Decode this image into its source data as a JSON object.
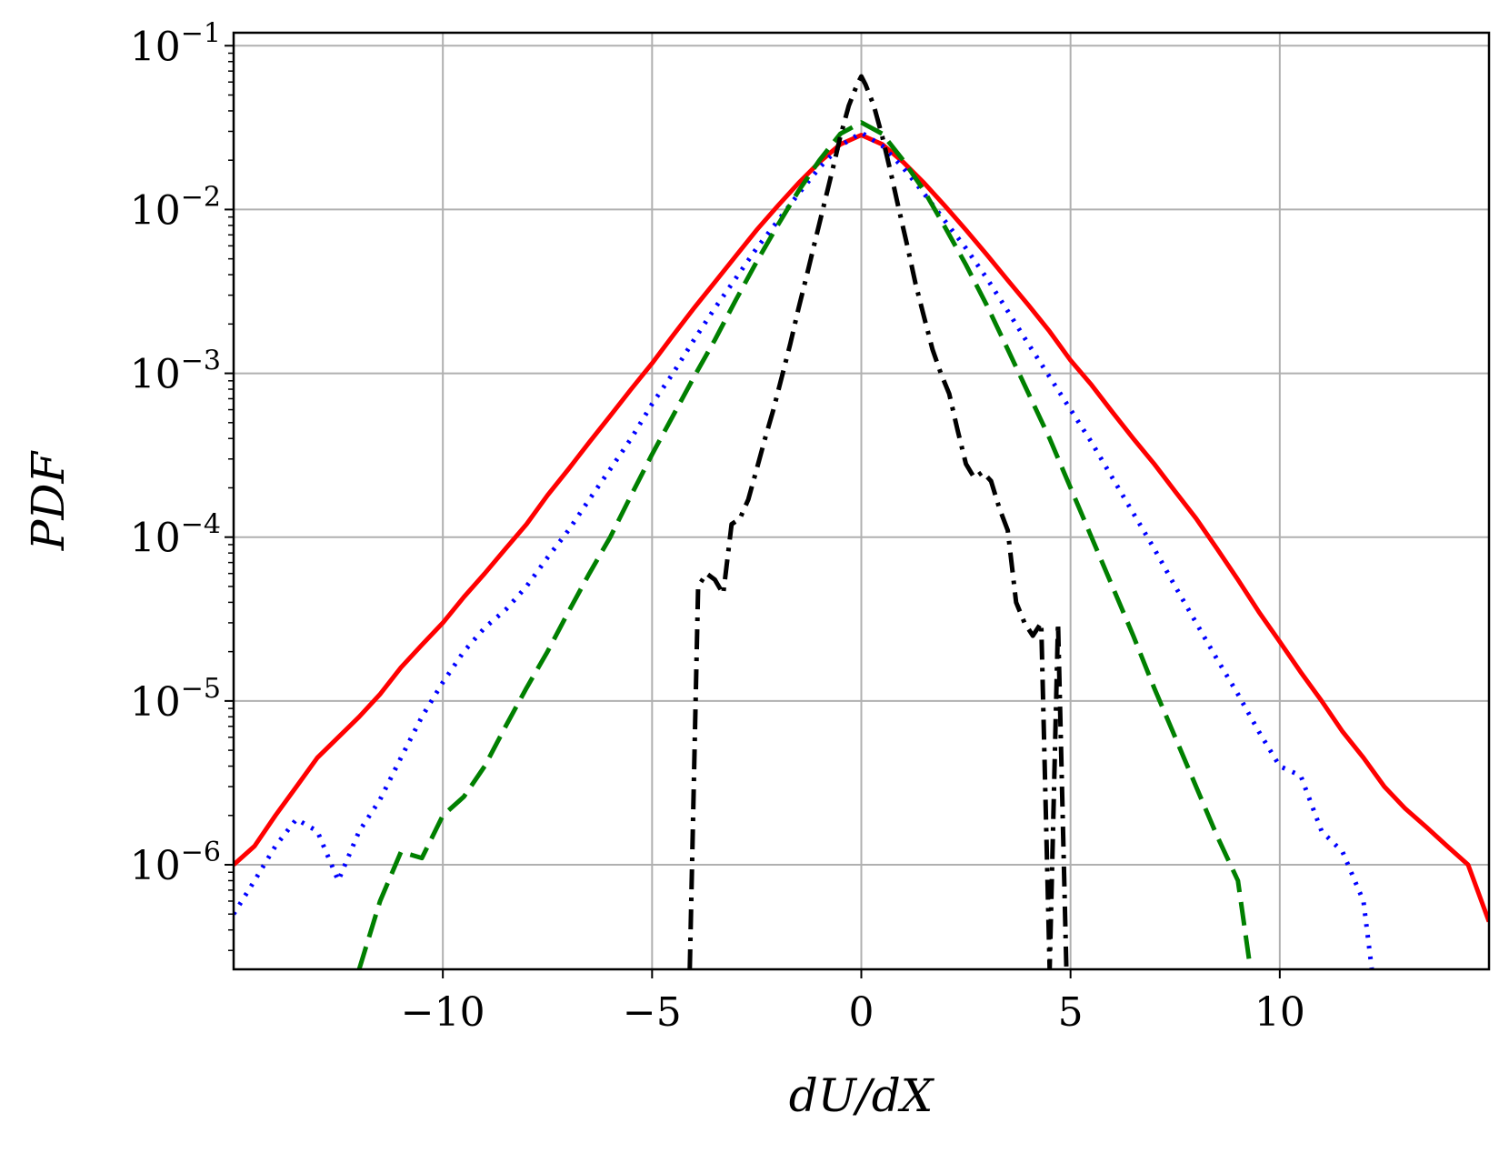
{
  "chart_data": {
    "type": "line",
    "title": "",
    "xlabel": "dU/dX",
    "ylabel": "PDF",
    "xlim": [
      -15,
      15
    ],
    "ylim": [
      2.3e-07,
      0.12
    ],
    "yscale": "log",
    "grid": true,
    "legend": "none",
    "x_ticks": [
      -10,
      -5,
      0,
      5,
      10
    ],
    "x_tick_labels": [
      "−10",
      "−5",
      "0",
      "5",
      "10"
    ],
    "y_ticks": [
      1e-06,
      1e-05,
      0.0001,
      0.001,
      0.01,
      0.1
    ],
    "y_tick_labels": [
      {
        "base": "10",
        "exp": "−6"
      },
      {
        "base": "10",
        "exp": "−5"
      },
      {
        "base": "10",
        "exp": "−4"
      },
      {
        "base": "10",
        "exp": "−3"
      },
      {
        "base": "10",
        "exp": "−2"
      },
      {
        "base": "10",
        "exp": "−1"
      }
    ],
    "series": [
      {
        "color": "#ff0000",
        "style": "solid",
        "x": [
          -15,
          -14.5,
          -14,
          -13.5,
          -13,
          -12.5,
          -12,
          -11.5,
          -11,
          -10.5,
          -10,
          -9.5,
          -9,
          -8.5,
          -8,
          -7.5,
          -7,
          -6.5,
          -6,
          -5.5,
          -5,
          -4.5,
          -4,
          -3.5,
          -3,
          -2.5,
          -2,
          -1.5,
          -1,
          -0.5,
          0,
          0.5,
          1,
          1.5,
          2,
          2.5,
          3,
          3.5,
          4,
          4.5,
          5,
          5.5,
          6,
          6.5,
          7,
          7.5,
          8,
          8.5,
          9,
          9.5,
          10,
          10.5,
          11,
          11.5,
          12,
          12.5,
          13,
          13.5,
          14,
          14.5,
          15
        ],
        "y": [
          1e-06,
          1.3e-06,
          2e-06,
          3e-06,
          4.5e-06,
          6e-06,
          8e-06,
          1.1e-05,
          1.6e-05,
          2.2e-05,
          3e-05,
          4.3e-05,
          6e-05,
          8.5e-05,
          0.00012,
          0.00018,
          0.00026,
          0.00038,
          0.00055,
          0.0008,
          0.00115,
          0.0017,
          0.0025,
          0.0036,
          0.0052,
          0.0075,
          0.0105,
          0.0145,
          0.0195,
          0.025,
          0.0285,
          0.025,
          0.0195,
          0.0145,
          0.0105,
          0.0075,
          0.0053,
          0.0037,
          0.0026,
          0.0018,
          0.0012,
          0.00085,
          0.00058,
          0.0004,
          0.00028,
          0.00019,
          0.00013,
          8.5e-05,
          5.5e-05,
          3.5e-05,
          2.3e-05,
          1.5e-05,
          1e-05,
          6.5e-06,
          4.5e-06,
          3e-06,
          2.2e-06,
          1.7e-06,
          1.3e-06,
          1e-06,
          4.5e-07
        ]
      },
      {
        "color": "#0000ff",
        "style": "dotted",
        "x": [
          -15,
          -14.5,
          -14,
          -13.5,
          -13,
          -12.5,
          -12,
          -11.5,
          -11,
          -10.5,
          -10,
          -9.5,
          -9,
          -8.5,
          -8,
          -7.5,
          -7,
          -6.5,
          -6,
          -5.5,
          -5,
          -4.5,
          -4,
          -3.5,
          -3,
          -2.5,
          -2,
          -1.5,
          -1,
          -0.5,
          0,
          0.5,
          1,
          1.5,
          2,
          2.5,
          3,
          3.5,
          4,
          4.5,
          5,
          5.5,
          6,
          6.5,
          7,
          7.5,
          8,
          8.5,
          9,
          9.5,
          10,
          10.5,
          11,
          11.5,
          12,
          12.2
        ],
        "y": [
          5e-07,
          8e-07,
          1.3e-06,
          1.9e-06,
          1.6e-06,
          8e-07,
          1.6e-06,
          2.5e-06,
          4.5e-06,
          8e-06,
          1.3e-05,
          2e-05,
          2.8e-05,
          3.6e-05,
          5e-05,
          7.5e-05,
          0.00011,
          0.00017,
          0.00026,
          0.0004,
          0.00065,
          0.001,
          0.0016,
          0.0025,
          0.0038,
          0.0058,
          0.0085,
          0.0125,
          0.018,
          0.0245,
          0.0295,
          0.0245,
          0.018,
          0.0125,
          0.0085,
          0.0058,
          0.0038,
          0.0024,
          0.0015,
          0.00095,
          0.0006,
          0.00038,
          0.00023,
          0.00014,
          8.5e-05,
          5e-05,
          3e-05,
          1.8e-05,
          1.1e-05,
          6.5e-06,
          4e-06,
          3.5e-06,
          1.6e-06,
          1.2e-06,
          6e-07,
          2.3e-07
        ]
      },
      {
        "color": "#008000",
        "style": "dashed",
        "x": [
          -12,
          -11.5,
          -11,
          -10.5,
          -10,
          -9.5,
          -9,
          -8.5,
          -8,
          -7.5,
          -7,
          -6.5,
          -6,
          -5.5,
          -5,
          -4.5,
          -4,
          -3.5,
          -3,
          -2.5,
          -2,
          -1.5,
          -1,
          -0.5,
          0,
          0.5,
          1,
          1.5,
          2,
          2.5,
          3,
          3.5,
          4,
          4.5,
          5,
          5.5,
          6,
          6.5,
          7,
          7.5,
          8,
          8.5,
          9,
          9.3
        ],
        "y": [
          2.3e-07,
          6e-07,
          1.2e-06,
          1.1e-06,
          2e-06,
          2.6e-06,
          4e-06,
          7e-06,
          1.2e-05,
          2e-05,
          3.5e-05,
          6e-05,
          0.0001,
          0.00018,
          0.00032,
          0.00055,
          0.00095,
          0.0016,
          0.0028,
          0.0048,
          0.008,
          0.013,
          0.02,
          0.029,
          0.034,
          0.029,
          0.02,
          0.013,
          0.0078,
          0.0046,
          0.0026,
          0.0014,
          0.00075,
          0.0004,
          0.0002,
          0.0001,
          5e-05,
          2.5e-05,
          1.2e-05,
          6e-06,
          3e-06,
          1.5e-06,
          8e-07,
          2.3e-07
        ]
      },
      {
        "color": "#000000",
        "style": "dashdot",
        "x": [
          -4.1,
          -3.9,
          -3.7,
          -3.5,
          -3.3,
          -3.1,
          -2.9,
          -2.7,
          -2.5,
          -2.3,
          -2.1,
          -1.9,
          -1.7,
          -1.5,
          -1.3,
          -1.1,
          -0.9,
          -0.7,
          -0.5,
          -0.3,
          -0.1,
          0,
          0.1,
          0.3,
          0.5,
          0.7,
          0.9,
          1.1,
          1.3,
          1.5,
          1.7,
          1.9,
          2.1,
          2.3,
          2.5,
          2.7,
          2.9,
          3.1,
          3.3,
          3.5,
          3.7,
          3.9,
          4.1,
          4.3,
          4.5,
          4.7,
          4.9
        ],
        "y": [
          2.3e-07,
          5e-05,
          6e-05,
          5.5e-05,
          4.5e-05,
          0.00012,
          0.00013,
          0.00017,
          0.00026,
          0.0004,
          0.0006,
          0.00095,
          0.0015,
          0.0025,
          0.004,
          0.0065,
          0.0105,
          0.017,
          0.028,
          0.043,
          0.058,
          0.065,
          0.058,
          0.043,
          0.028,
          0.017,
          0.01,
          0.006,
          0.0035,
          0.0022,
          0.0014,
          0.001,
          0.00075,
          0.00045,
          0.00028,
          0.00023,
          0.00025,
          0.00022,
          0.00015,
          0.00011,
          4e-05,
          3e-05,
          2.5e-05,
          3e-05,
          2.3e-07,
          3e-05,
          2.3e-07
        ]
      }
    ]
  }
}
